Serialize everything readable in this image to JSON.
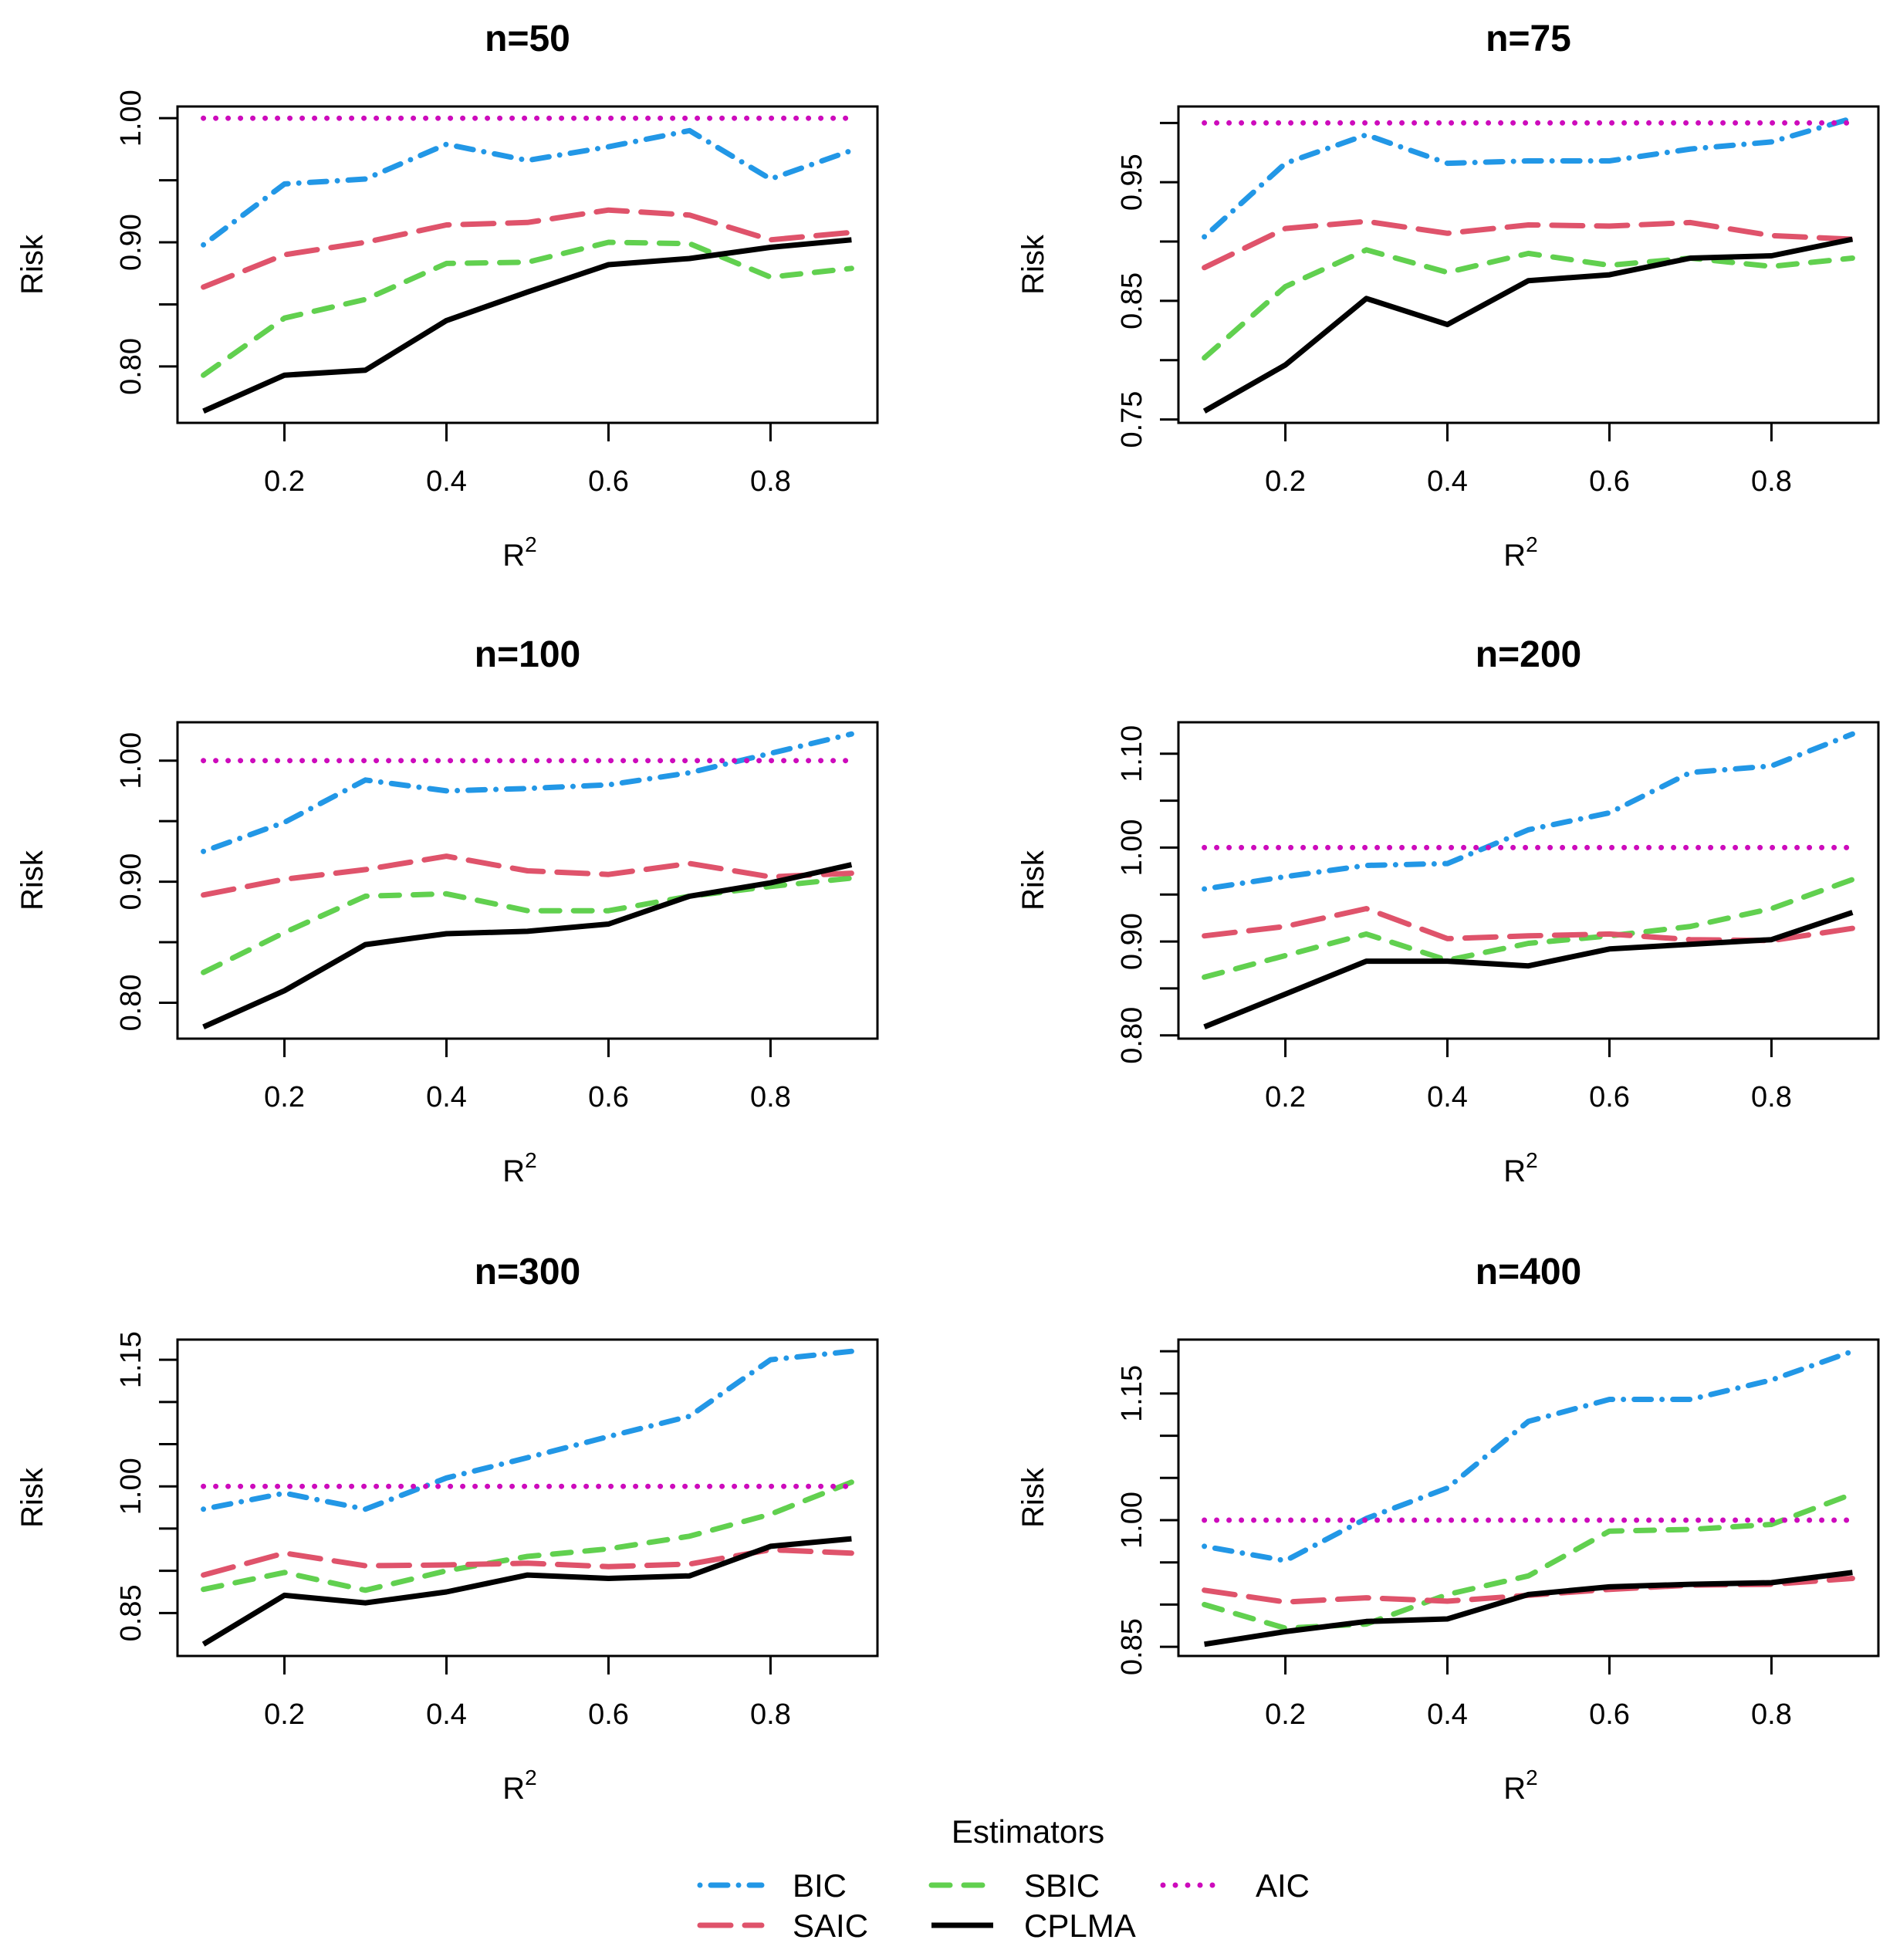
{
  "chart_data": {
    "type": "line",
    "x": [
      0.1,
      0.2,
      0.3,
      0.4,
      0.5,
      0.6,
      0.7,
      0.8,
      0.9
    ],
    "xticks": [
      0.2,
      0.4,
      0.6,
      0.8
    ],
    "xtick_labels": [
      "0.2",
      "0.4",
      "0.6",
      "0.8"
    ],
    "xlabel": "R",
    "xlabel_sup": "2",
    "ylabel": "Risk",
    "legend_title": "Estimators",
    "legend_placement": "bottom-center",
    "series_styles": [
      {
        "name": "BIC",
        "color": "#2297E6",
        "dash": "dotdash"
      },
      {
        "name": "SBIC",
        "color": "#61D04F",
        "dash": "dashed"
      },
      {
        "name": "AIC",
        "color": "#CD0BBC",
        "dash": "dotted"
      },
      {
        "name": "SAIC",
        "color": "#DF536B",
        "dash": "longdash"
      },
      {
        "name": "CPLMA",
        "color": "#000000",
        "dash": "solid"
      }
    ],
    "panels": [
      {
        "title": "n=50",
        "yticks": [
          0.8,
          0.85,
          0.9,
          0.95,
          1.0
        ],
        "ytick_labels": [
          "0.80",
          "",
          "0.90",
          "",
          "1.00"
        ],
        "series": [
          {
            "name": "BIC",
            "values": [
              0.898,
              0.947,
              0.951,
              0.979,
              0.966,
              0.977,
              0.99,
              0.951,
              0.974
            ]
          },
          {
            "name": "SBIC",
            "values": [
              0.793,
              0.839,
              0.854,
              0.883,
              0.884,
              0.9,
              0.899,
              0.872,
              0.879
            ]
          },
          {
            "name": "AIC",
            "values": [
              1,
              1,
              1,
              1,
              1,
              1,
              1,
              1,
              1
            ]
          },
          {
            "name": "SAIC",
            "values": [
              0.864,
              0.89,
              0.9,
              0.914,
              0.916,
              0.926,
              0.922,
              0.902,
              0.908
            ]
          },
          {
            "name": "CPLMA",
            "values": [
              0.764,
              0.793,
              0.797,
              0.837,
              0.86,
              0.882,
              0.887,
              0.896,
              0.902
            ]
          }
        ]
      },
      {
        "title": "n=75",
        "yticks": [
          0.75,
          0.8,
          0.85,
          0.9,
          0.95,
          1.0
        ],
        "ytick_labels": [
          "0.75",
          "",
          "0.85",
          "",
          "0.95",
          ""
        ],
        "series": [
          {
            "name": "BIC",
            "values": [
              0.904,
              0.966,
              0.99,
              0.966,
              0.968,
              0.968,
              0.978,
              0.984,
              1.004
            ]
          },
          {
            "name": "SBIC",
            "values": [
              0.802,
              0.862,
              0.893,
              0.874,
              0.89,
              0.88,
              0.886,
              0.879,
              0.886
            ]
          },
          {
            "name": "AIC",
            "values": [
              1,
              1,
              1,
              1,
              1,
              1,
              1,
              1,
              1
            ]
          },
          {
            "name": "SAIC",
            "values": [
              0.878,
              0.911,
              0.917,
              0.907,
              0.914,
              0.913,
              0.916,
              0.905,
              0.902
            ]
          },
          {
            "name": "CPLMA",
            "values": [
              0.757,
              0.796,
              0.852,
              0.83,
              0.867,
              0.872,
              0.886,
              0.888,
              0.902
            ]
          }
        ]
      },
      {
        "title": "n=100",
        "yticks": [
          0.8,
          0.85,
          0.9,
          0.95,
          1.0
        ],
        "ytick_labels": [
          "0.80",
          "",
          "0.90",
          "",
          "1.00"
        ],
        "series": [
          {
            "name": "BIC",
            "values": [
              0.925,
              0.949,
              0.984,
              0.975,
              0.977,
              0.98,
              0.99,
              1.006,
              1.022
            ]
          },
          {
            "name": "SBIC",
            "values": [
              0.825,
              0.858,
              0.888,
              0.89,
              0.876,
              0.876,
              0.888,
              0.896,
              0.903
            ]
          },
          {
            "name": "AIC",
            "values": [
              1,
              1,
              1,
              1,
              1,
              1,
              1,
              1,
              1
            ]
          },
          {
            "name": "SAIC",
            "values": [
              0.889,
              0.902,
              0.91,
              0.921,
              0.909,
              0.906,
              0.915,
              0.904,
              0.907
            ]
          },
          {
            "name": "CPLMA",
            "values": [
              0.78,
              0.81,
              0.848,
              0.857,
              0.859,
              0.865,
              0.888,
              0.899,
              0.914
            ]
          }
        ]
      },
      {
        "title": "n=200",
        "yticks": [
          0.8,
          0.85,
          0.9,
          0.95,
          1.0,
          1.05,
          1.1
        ],
        "ytick_labels": [
          "0.80",
          "",
          "0.90",
          "",
          "1.00",
          "",
          "1.10"
        ],
        "series": [
          {
            "name": "BIC",
            "values": [
              0.956,
              0.969,
              0.981,
              0.983,
              1.019,
              1.037,
              1.08,
              1.087,
              1.121
            ]
          },
          {
            "name": "SBIC",
            "values": [
              0.862,
              0.885,
              0.908,
              0.88,
              0.898,
              0.906,
              0.916,
              0.935,
              0.966
            ]
          },
          {
            "name": "AIC",
            "values": [
              1,
              1,
              1,
              1,
              1,
              1,
              1,
              1,
              1
            ]
          },
          {
            "name": "SAIC",
            "values": [
              0.906,
              0.916,
              0.935,
              0.903,
              0.906,
              0.908,
              0.902,
              0.901,
              0.914
            ]
          },
          {
            "name": "CPLMA",
            "values": [
              0.809,
              0.844,
              0.879,
              0.879,
              0.874,
              0.892,
              0.897,
              0.902,
              0.931
            ]
          }
        ]
      },
      {
        "title": "n=300",
        "yticks": [
          0.85,
          0.9,
          0.95,
          1.0,
          1.05,
          1.1,
          1.15
        ],
        "ytick_labels": [
          "0.85",
          "",
          "",
          "1.00",
          "",
          "",
          "1.15"
        ],
        "series": [
          {
            "name": "BIC",
            "values": [
              0.973,
              0.992,
              0.973,
              1.01,
              1.034,
              1.059,
              1.083,
              1.15,
              1.16
            ]
          },
          {
            "name": "SBIC",
            "values": [
              0.878,
              0.898,
              0.877,
              0.9,
              0.917,
              0.926,
              0.941,
              0.967,
              1.005
            ]
          },
          {
            "name": "AIC",
            "values": [
              1,
              1,
              1,
              1,
              1,
              1,
              1,
              1,
              1
            ]
          },
          {
            "name": "SAIC",
            "values": [
              0.895,
              0.921,
              0.906,
              0.907,
              0.909,
              0.905,
              0.908,
              0.925,
              0.921
            ]
          },
          {
            "name": "CPLMA",
            "values": [
              0.813,
              0.871,
              0.862,
              0.875,
              0.895,
              0.891,
              0.894,
              0.929,
              0.938
            ]
          }
        ]
      },
      {
        "title": "n=400",
        "yticks": [
          0.85,
          0.9,
          0.95,
          1.0,
          1.05,
          1.1,
          1.15,
          1.2
        ],
        "ytick_labels": [
          "0.85",
          "",
          "",
          "1.00",
          "",
          "",
          "1.15",
          ""
        ],
        "series": [
          {
            "name": "BIC",
            "values": [
              0.969,
              0.952,
              1.002,
              1.038,
              1.117,
              1.143,
              1.143,
              1.166,
              1.2
            ]
          },
          {
            "name": "SBIC",
            "values": [
              0.9,
              0.872,
              0.877,
              0.912,
              0.934,
              0.987,
              0.989,
              0.995,
              1.031
            ]
          },
          {
            "name": "AIC",
            "values": [
              1,
              1,
              1,
              1,
              1,
              1,
              1,
              1,
              1
            ]
          },
          {
            "name": "SAIC",
            "values": [
              0.917,
              0.903,
              0.908,
              0.904,
              0.911,
              0.918,
              0.923,
              0.924,
              0.931
            ]
          },
          {
            "name": "CPLMA",
            "values": [
              0.853,
              0.868,
              0.88,
              0.883,
              0.912,
              0.921,
              0.924,
              0.926,
              0.938
            ]
          }
        ]
      }
    ]
  }
}
